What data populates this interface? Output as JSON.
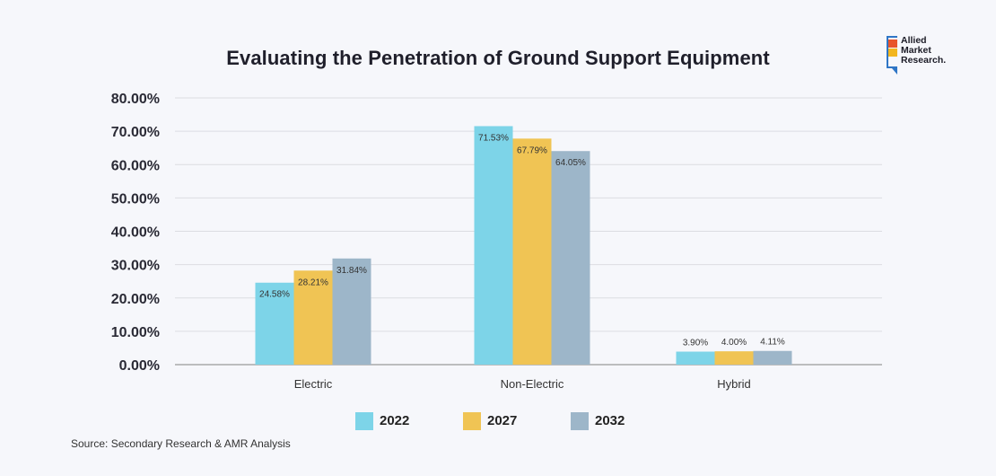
{
  "chart_data": {
    "type": "bar",
    "title": "Evaluating the Penetration of Ground Support Equipment",
    "categories": [
      "Electric",
      "Non-Electric",
      "Hybrid"
    ],
    "series": [
      {
        "name": "2022",
        "color": "#7dd4e8",
        "values": [
          24.58,
          71.53,
          3.9
        ],
        "labels": [
          "24.58%",
          "71.53%",
          "3.90%"
        ]
      },
      {
        "name": "2027",
        "color": "#f0c454",
        "values": [
          28.21,
          67.79,
          4.0
        ],
        "labels": [
          "28.21%",
          "67.79%",
          "4.00%"
        ]
      },
      {
        "name": "2032",
        "color": "#9db6c9",
        "values": [
          31.84,
          64.05,
          4.11
        ],
        "labels": [
          "31.84%",
          "64.05%",
          "4.11%"
        ]
      }
    ],
    "ylim": [
      0,
      80
    ],
    "yticks": [
      "0.00%",
      "10.00%",
      "20.00%",
      "30.00%",
      "40.00%",
      "50.00%",
      "60.00%",
      "70.00%",
      "80.00%"
    ],
    "xlabel": "",
    "ylabel": "",
    "grid": true,
    "legend_position": "bottom"
  },
  "source": "Source: Secondary Research & AMR Analysis",
  "logo": {
    "lines": [
      "Allied",
      "Market",
      "Research."
    ],
    "colors": [
      "#e8542b",
      "#f2b61f",
      "#2f76c6"
    ]
  }
}
